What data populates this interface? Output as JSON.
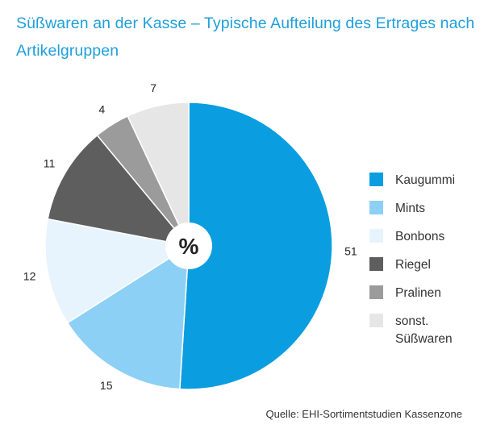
{
  "chart_data": {
    "type": "pie",
    "title": "Süßwaren an der Kasse – Typische Aufteilung des Ertrages nach Artikelgruppen",
    "center_label": "%",
    "unit": "%",
    "legend_position": "right",
    "slices": [
      {
        "name": "Kaugummi",
        "value": 51,
        "color": "#0a9ee0"
      },
      {
        "name": "Mints",
        "value": 15,
        "color": "#8dd0f5"
      },
      {
        "name": "Bonbons",
        "value": 12,
        "color": "#e7f4fd"
      },
      {
        "name": "Riegel",
        "value": 11,
        "color": "#5e5e5e"
      },
      {
        "name": "Pralinen",
        "value": 4,
        "color": "#9b9b9b"
      },
      {
        "name": "sonst. Süßwaren",
        "value": 7,
        "color": "#e6e6e6"
      }
    ]
  },
  "source": "Quelle: EHI-Sortimentstudien Kassenzone"
}
